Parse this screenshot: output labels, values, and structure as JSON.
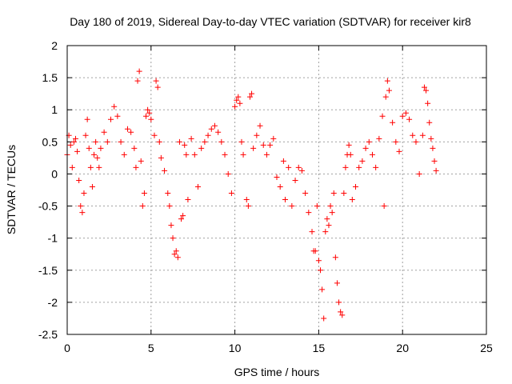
{
  "chart_data": {
    "type": "scatter",
    "title": "Day 180 of 2019, Sidereal Day-to-day VTEC variation (SDTVAR) for receiver kir8",
    "xlabel": "GPS time / hours",
    "ylabel": "SDTVAR / TECUs",
    "xlim": [
      0,
      25
    ],
    "ylim": [
      -2.5,
      2
    ],
    "xticks": [
      0,
      5,
      10,
      15,
      20,
      25
    ],
    "yticks": [
      -2.5,
      -2,
      -1.5,
      -1,
      -0.5,
      0,
      0.5,
      1,
      1.5,
      2
    ],
    "grid": true,
    "marker": "+",
    "color": "#ff0000",
    "series": [
      {
        "name": "SDTVAR",
        "points": [
          [
            0.0,
            0.3
          ],
          [
            0.1,
            0.6
          ],
          [
            0.2,
            0.45
          ],
          [
            0.3,
            0.1
          ],
          [
            0.4,
            0.5
          ],
          [
            0.5,
            0.55
          ],
          [
            0.6,
            0.35
          ],
          [
            0.7,
            -0.1
          ],
          [
            0.8,
            -0.5
          ],
          [
            0.9,
            -0.6
          ],
          [
            1.0,
            -0.3
          ],
          [
            1.1,
            0.6
          ],
          [
            1.2,
            0.85
          ],
          [
            1.3,
            0.4
          ],
          [
            1.4,
            0.1
          ],
          [
            1.5,
            -0.2
          ],
          [
            1.6,
            0.3
          ],
          [
            1.7,
            0.5
          ],
          [
            1.8,
            0.25
          ],
          [
            1.9,
            0.1
          ],
          [
            2.0,
            0.4
          ],
          [
            2.2,
            0.65
          ],
          [
            2.4,
            0.5
          ],
          [
            2.6,
            0.85
          ],
          [
            2.8,
            1.05
          ],
          [
            3.0,
            0.9
          ],
          [
            3.2,
            0.5
          ],
          [
            3.4,
            0.3
          ],
          [
            3.6,
            0.7
          ],
          [
            3.8,
            0.65
          ],
          [
            4.0,
            0.4
          ],
          [
            4.1,
            0.1
          ],
          [
            4.2,
            1.45
          ],
          [
            4.3,
            1.6
          ],
          [
            4.4,
            0.2
          ],
          [
            4.5,
            -0.5
          ],
          [
            4.6,
            -0.3
          ],
          [
            4.7,
            0.9
          ],
          [
            4.8,
            1.0
          ],
          [
            4.9,
            0.95
          ],
          [
            5.0,
            0.85
          ],
          [
            5.2,
            0.6
          ],
          [
            5.3,
            1.45
          ],
          [
            5.4,
            1.35
          ],
          [
            5.5,
            0.5
          ],
          [
            5.6,
            0.25
          ],
          [
            5.8,
            0.05
          ],
          [
            6.0,
            -0.3
          ],
          [
            6.1,
            -0.5
          ],
          [
            6.2,
            -0.8
          ],
          [
            6.3,
            -1.0
          ],
          [
            6.4,
            -1.25
          ],
          [
            6.5,
            -1.2
          ],
          [
            6.6,
            -1.3
          ],
          [
            6.7,
            0.5
          ],
          [
            6.8,
            -0.7
          ],
          [
            6.9,
            -0.65
          ],
          [
            7.0,
            0.45
          ],
          [
            7.1,
            0.3
          ],
          [
            7.2,
            -0.4
          ],
          [
            7.4,
            0.55
          ],
          [
            7.6,
            0.3
          ],
          [
            7.8,
            -0.2
          ],
          [
            8.0,
            0.4
          ],
          [
            8.2,
            0.5
          ],
          [
            8.4,
            0.6
          ],
          [
            8.6,
            0.7
          ],
          [
            8.8,
            0.75
          ],
          [
            9.0,
            0.65
          ],
          [
            9.2,
            0.5
          ],
          [
            9.4,
            0.3
          ],
          [
            9.6,
            0.0
          ],
          [
            9.8,
            -0.3
          ],
          [
            10.0,
            1.05
          ],
          [
            10.1,
            1.15
          ],
          [
            10.2,
            1.2
          ],
          [
            10.3,
            1.1
          ],
          [
            10.4,
            0.5
          ],
          [
            10.5,
            0.3
          ],
          [
            10.7,
            -0.4
          ],
          [
            10.8,
            -0.5
          ],
          [
            10.9,
            1.2
          ],
          [
            11.0,
            1.25
          ],
          [
            11.1,
            0.4
          ],
          [
            11.3,
            0.6
          ],
          [
            11.5,
            0.75
          ],
          [
            11.7,
            0.45
          ],
          [
            11.9,
            0.3
          ],
          [
            12.1,
            0.45
          ],
          [
            12.3,
            0.55
          ],
          [
            12.5,
            -0.05
          ],
          [
            12.7,
            -0.2
          ],
          [
            12.9,
            0.2
          ],
          [
            13.0,
            -0.4
          ],
          [
            13.2,
            0.1
          ],
          [
            13.4,
            -0.5
          ],
          [
            13.6,
            -0.1
          ],
          [
            13.8,
            0.1
          ],
          [
            14.0,
            0.05
          ],
          [
            14.2,
            -0.3
          ],
          [
            14.4,
            -0.6
          ],
          [
            14.6,
            -0.9
          ],
          [
            14.7,
            -1.2
          ],
          [
            14.8,
            -1.2
          ],
          [
            14.9,
            -0.5
          ],
          [
            15.0,
            -1.35
          ],
          [
            15.1,
            -1.5
          ],
          [
            15.2,
            -1.8
          ],
          [
            15.3,
            -2.25
          ],
          [
            15.4,
            -0.9
          ],
          [
            15.5,
            -0.7
          ],
          [
            15.6,
            -0.8
          ],
          [
            15.7,
            -0.5
          ],
          [
            15.8,
            -0.6
          ],
          [
            15.9,
            -0.3
          ],
          [
            16.0,
            -1.3
          ],
          [
            16.1,
            -1.7
          ],
          [
            16.2,
            -2.0
          ],
          [
            16.3,
            -2.15
          ],
          [
            16.4,
            -2.2
          ],
          [
            16.5,
            -0.3
          ],
          [
            16.6,
            0.1
          ],
          [
            16.7,
            0.3
          ],
          [
            16.8,
            0.45
          ],
          [
            16.9,
            0.3
          ],
          [
            17.0,
            -0.4
          ],
          [
            17.2,
            -0.2
          ],
          [
            17.4,
            0.1
          ],
          [
            17.6,
            0.2
          ],
          [
            17.8,
            0.4
          ],
          [
            18.0,
            0.5
          ],
          [
            18.2,
            0.3
          ],
          [
            18.4,
            0.1
          ],
          [
            18.6,
            0.55
          ],
          [
            18.8,
            0.9
          ],
          [
            18.9,
            -0.5
          ],
          [
            19.0,
            1.2
          ],
          [
            19.1,
            1.45
          ],
          [
            19.2,
            1.3
          ],
          [
            19.4,
            0.8
          ],
          [
            19.6,
            0.5
          ],
          [
            19.8,
            0.35
          ],
          [
            20.0,
            0.9
          ],
          [
            20.2,
            0.95
          ],
          [
            20.4,
            0.85
          ],
          [
            20.6,
            0.6
          ],
          [
            20.8,
            0.5
          ],
          [
            21.0,
            0.0
          ],
          [
            21.2,
            0.6
          ],
          [
            21.3,
            1.35
          ],
          [
            21.4,
            1.3
          ],
          [
            21.5,
            1.1
          ],
          [
            21.6,
            0.8
          ],
          [
            21.7,
            0.55
          ],
          [
            21.8,
            0.4
          ],
          [
            21.9,
            0.2
          ],
          [
            22.0,
            0.05
          ]
        ]
      }
    ]
  }
}
